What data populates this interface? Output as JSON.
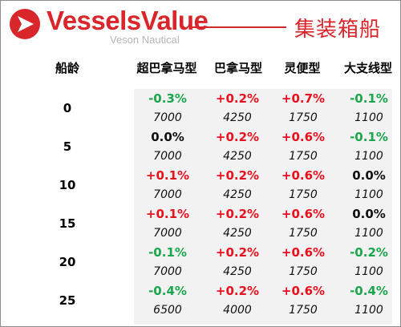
{
  "header": {
    "brand_name": "VesselsValue",
    "brand_sub": "Veson Nautical",
    "title": "集装箱船",
    "brand_color": "#d9262b"
  },
  "table": {
    "age_header": "船龄",
    "columns": [
      "超巴拿马型",
      "巴拿马型",
      "灵便型",
      "大支线型"
    ],
    "rows": [
      {
        "age": "0",
        "changes": [
          "-0.3%",
          "+0.2%",
          "+0.7%",
          "-0.1%"
        ],
        "values": [
          "7000",
          "4250",
          "1750",
          "1100"
        ]
      },
      {
        "age": "5",
        "changes": [
          "0.0%",
          "+0.2%",
          "+0.6%",
          "-0.1%"
        ],
        "values": [
          "7000",
          "4250",
          "1750",
          "1100"
        ]
      },
      {
        "age": "10",
        "changes": [
          "+0.1%",
          "+0.2%",
          "+0.6%",
          "0.0%"
        ],
        "values": [
          "7000",
          "4250",
          "1750",
          "1100"
        ]
      },
      {
        "age": "15",
        "changes": [
          "+0.1%",
          "+0.2%",
          "+0.6%",
          "0.0%"
        ],
        "values": [
          "7000",
          "4250",
          "1750",
          "1100"
        ]
      },
      {
        "age": "20",
        "changes": [
          "-0.1%",
          "+0.2%",
          "+0.6%",
          "-0.2%"
        ],
        "values": [
          "7000",
          "4250",
          "1750",
          "1100"
        ]
      },
      {
        "age": "25",
        "changes": [
          "-0.4%",
          "+0.2%",
          "+0.6%",
          "-0.4%"
        ],
        "values": [
          "6500",
          "4000",
          "1750",
          "1100"
        ]
      }
    ]
  },
  "colors": {
    "positive": "#e8101f",
    "negative": "#1aa64c",
    "neutral": "#111111"
  }
}
